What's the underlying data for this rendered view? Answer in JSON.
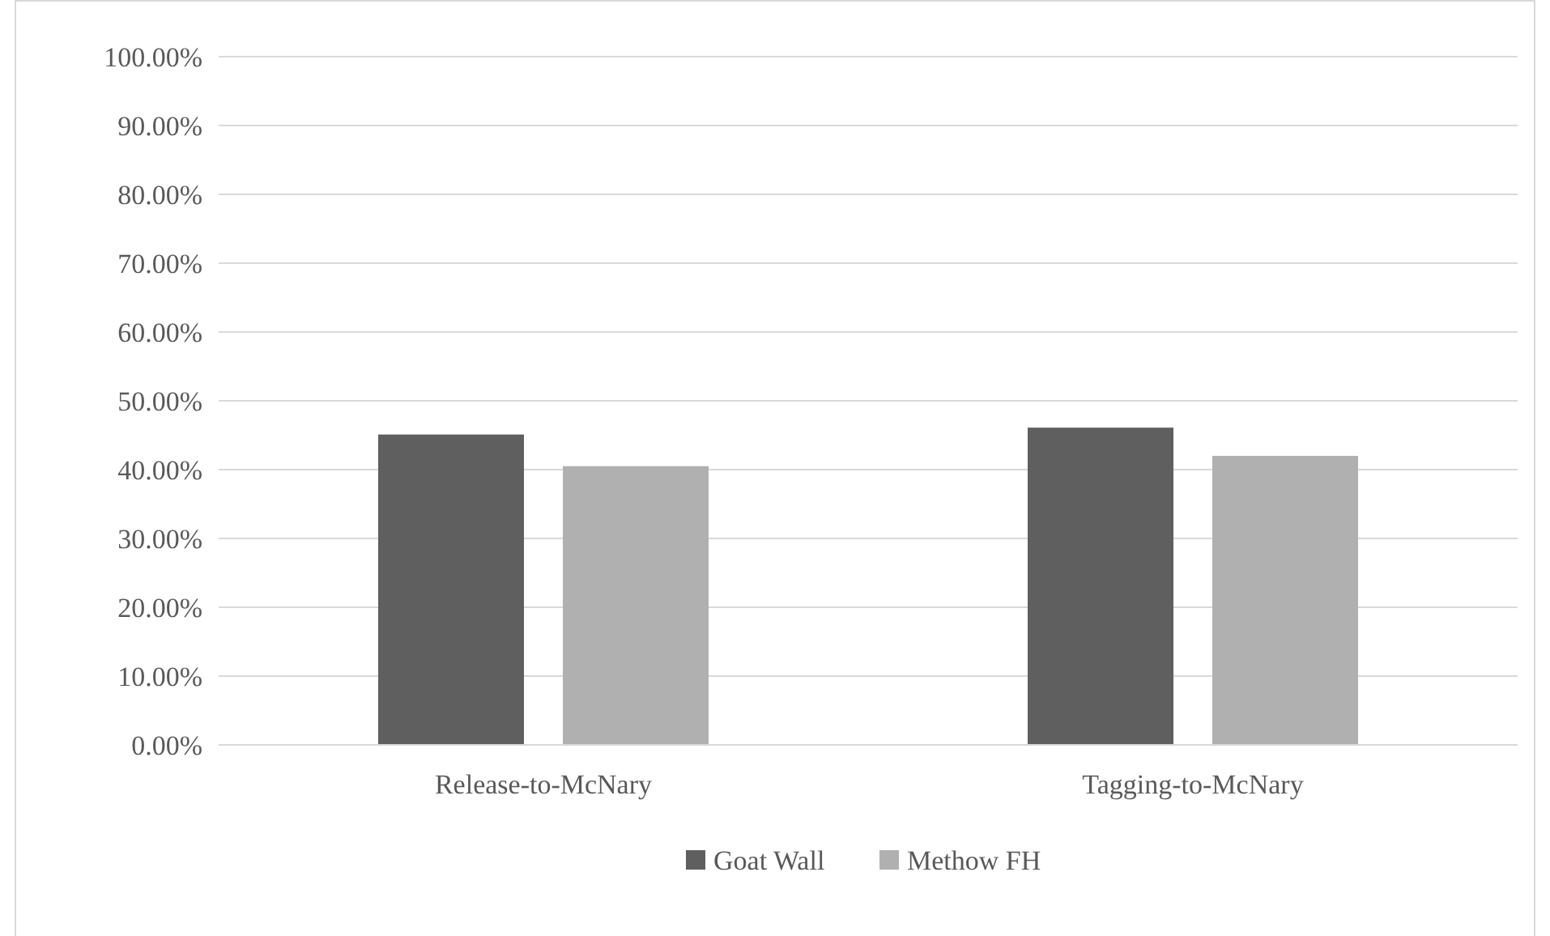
{
  "chart_data": {
    "type": "bar",
    "categories": [
      "Release-to-McNary",
      "Tagging-to-McNary"
    ],
    "series": [
      {
        "name": "Goat Wall",
        "color": "#5f5f5f",
        "values": [
          45.1,
          46.1
        ]
      },
      {
        "name": "Methow FH",
        "color": "#b0b0b0",
        "values": [
          40.5,
          42.0
        ]
      }
    ],
    "ylim": [
      0,
      100
    ],
    "yticks": [
      {
        "value": 0,
        "label": "0.00%"
      },
      {
        "value": 10,
        "label": "10.00%"
      },
      {
        "value": 20,
        "label": "20.00%"
      },
      {
        "value": 30,
        "label": "30.00%"
      },
      {
        "value": 40,
        "label": "40.00%"
      },
      {
        "value": 50,
        "label": "50.00%"
      },
      {
        "value": 60,
        "label": "60.00%"
      },
      {
        "value": 70,
        "label": "70.00%"
      },
      {
        "value": 80,
        "label": "80.00%"
      },
      {
        "value": 90,
        "label": "90.00%"
      },
      {
        "value": 100,
        "label": "100.00%"
      }
    ],
    "grid": "y",
    "legend": "bottom"
  }
}
